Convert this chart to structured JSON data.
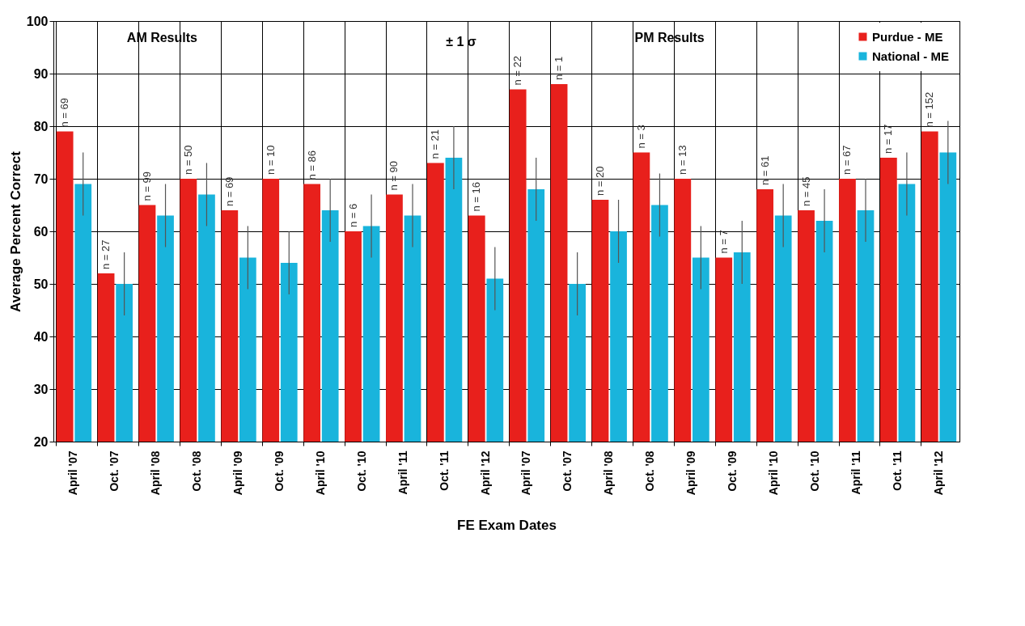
{
  "chart_data": {
    "type": "bar",
    "xlabel": "FE Exam Dates",
    "ylabel": "Average Percent Correct",
    "categories": [
      "April '07",
      "Oct. '07",
      "April '08",
      "Oct. '08",
      "April '09",
      "Oct. '09",
      "April '10",
      "Oct. '10",
      "April '11",
      "Oct. '11",
      "April '12",
      "April '07",
      "Oct. '07",
      "April '08",
      "Oct. '08",
      "April '09",
      "Oct. '09",
      "April '10",
      "Oct. '10",
      "April '11",
      "Oct. '11",
      "April '12"
    ],
    "series": [
      {
        "name": "Purdue - ME",
        "color": "#e8201c",
        "values": [
          79,
          52,
          65,
          70,
          64,
          70,
          69,
          60,
          67,
          73,
          63,
          87,
          88,
          66,
          75,
          70,
          55,
          68,
          64,
          70,
          74,
          79
        ]
      },
      {
        "name": "National - ME",
        "color": "#19b4dc",
        "values": [
          69,
          50,
          63,
          67,
          55,
          54,
          64,
          61,
          63,
          74,
          51,
          68,
          50,
          60,
          65,
          55,
          56,
          63,
          62,
          64,
          69,
          75
        ],
        "errors": [
          6,
          6,
          6,
          6,
          6,
          6,
          6,
          6,
          6,
          6,
          6,
          6,
          6,
          6,
          6,
          6,
          6,
          6,
          6,
          6,
          6,
          6
        ]
      }
    ],
    "ylim": [
      20,
      100
    ],
    "yticks": [
      20,
      30,
      40,
      50,
      60,
      70,
      80,
      90,
      100
    ],
    "grid": true,
    "legend": "top right",
    "annotations": [
      "AM Results",
      "PM Results",
      "± 1 σ",
      "n = 69",
      "n = 27",
      "n = 99",
      "n = 50",
      "n = 69",
      "n = 10",
      "n = 86",
      "n = 6",
      "n = 90",
      "n = 21",
      "n = 16",
      "n = 22",
      "n = 1",
      "n = 20",
      "n = 3",
      "n = 13",
      "n = 7",
      "n = 61",
      "n = 45",
      "n = 67",
      "n = 17",
      "n = 152"
    ]
  }
}
